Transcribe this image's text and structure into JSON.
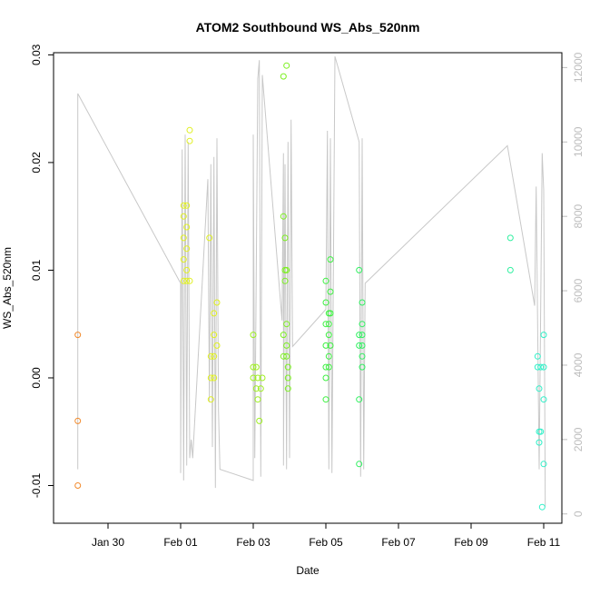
{
  "chart_data": {
    "type": "scatter",
    "title": "ATOM2 Southbound WS_Abs_520nm",
    "xlabel": "Date",
    "ylabel": "WS_Abs_520nm",
    "xlim": [
      "2022-01-28T12:00",
      "2022-02-11T12:00"
    ],
    "ylim": [
      -0.0135,
      0.0302
    ],
    "x_ticks": [
      "Jan 30",
      "Feb 01",
      "Feb 03",
      "Feb 05",
      "Feb 07",
      "Feb 09",
      "Feb 11"
    ],
    "y_ticks": [
      "-0.01",
      "0.00",
      "0.01",
      "0.02",
      "0.03"
    ],
    "right_axis": {
      "ylim": [
        -250,
        12400
      ],
      "ticks": [
        "0",
        "2000",
        "4000",
        "6000",
        "8000",
        "10000",
        "12000"
      ],
      "color": "#bdbdbd"
    },
    "colors": {
      "line": "#c8c8c8",
      "frame": "#000000"
    },
    "points": [
      {
        "x": "2022-01-29T04:00",
        "y": 0.004,
        "color": "#f28a2c"
      },
      {
        "x": "2022-01-29T04:00",
        "y": -0.004,
        "color": "#f28a2c"
      },
      {
        "x": "2022-01-29T04:00",
        "y": -0.01,
        "color": "#f28a2c"
      },
      {
        "x": "2022-02-01T02:00",
        "y": 0.016,
        "color": "#e0f020"
      },
      {
        "x": "2022-02-01T02:00",
        "y": 0.015,
        "color": "#e0f020"
      },
      {
        "x": "2022-02-01T02:00",
        "y": 0.013,
        "color": "#e0f020"
      },
      {
        "x": "2022-02-01T02:00",
        "y": 0.011,
        "color": "#e0f020"
      },
      {
        "x": "2022-02-01T02:00",
        "y": 0.009,
        "color": "#e0f020"
      },
      {
        "x": "2022-02-01T04:00",
        "y": 0.016,
        "color": "#e0f020"
      },
      {
        "x": "2022-02-01T04:00",
        "y": 0.014,
        "color": "#e0f020"
      },
      {
        "x": "2022-02-01T04:00",
        "y": 0.012,
        "color": "#e0f020"
      },
      {
        "x": "2022-02-01T04:00",
        "y": 0.01,
        "color": "#e0f020"
      },
      {
        "x": "2022-02-01T04:00",
        "y": 0.009,
        "color": "#e0f020"
      },
      {
        "x": "2022-02-01T06:00",
        "y": 0.023,
        "color": "#e0f020"
      },
      {
        "x": "2022-02-01T06:00",
        "y": 0.022,
        "color": "#e0f020"
      },
      {
        "x": "2022-02-01T06:00",
        "y": 0.009,
        "color": "#e0f020"
      },
      {
        "x": "2022-02-01T19:00",
        "y": 0.013,
        "color": "#e0f020"
      },
      {
        "x": "2022-02-01T20:00",
        "y": 0.002,
        "color": "#e0f020"
      },
      {
        "x": "2022-02-01T20:00",
        "y": 0.0,
        "color": "#e0f020"
      },
      {
        "x": "2022-02-01T20:00",
        "y": -0.002,
        "color": "#e0f020"
      },
      {
        "x": "2022-02-01T22:00",
        "y": 0.006,
        "color": "#e0f020"
      },
      {
        "x": "2022-02-01T22:00",
        "y": 0.004,
        "color": "#e0f020"
      },
      {
        "x": "2022-02-01T22:00",
        "y": 0.002,
        "color": "#e0f020"
      },
      {
        "x": "2022-02-01T22:00",
        "y": 0.0,
        "color": "#e0f020"
      },
      {
        "x": "2022-02-02T00:00",
        "y": 0.007,
        "color": "#e0f020"
      },
      {
        "x": "2022-02-02T00:00",
        "y": 0.003,
        "color": "#e0f020"
      },
      {
        "x": "2022-02-03T00:00",
        "y": 0.004,
        "color": "#9ef020"
      },
      {
        "x": "2022-02-03T00:00",
        "y": 0.001,
        "color": "#9ef020"
      },
      {
        "x": "2022-02-03T00:00",
        "y": 0.0,
        "color": "#9ef020"
      },
      {
        "x": "2022-02-03T02:00",
        "y": 0.001,
        "color": "#9ef020"
      },
      {
        "x": "2022-02-03T02:00",
        "y": -0.001,
        "color": "#9ef020"
      },
      {
        "x": "2022-02-03T03:00",
        "y": 0.0,
        "color": "#9ef020"
      },
      {
        "x": "2022-02-03T03:00",
        "y": -0.002,
        "color": "#9ef020"
      },
      {
        "x": "2022-02-03T04:00",
        "y": -0.004,
        "color": "#9ef020"
      },
      {
        "x": "2022-02-03T05:00",
        "y": -0.001,
        "color": "#9ef020"
      },
      {
        "x": "2022-02-03T06:00",
        "y": 0.0,
        "color": "#9ef020"
      },
      {
        "x": "2022-02-03T20:00",
        "y": 0.028,
        "color": "#7cf020"
      },
      {
        "x": "2022-02-03T22:00",
        "y": 0.029,
        "color": "#7cf020"
      },
      {
        "x": "2022-02-03T20:00",
        "y": 0.015,
        "color": "#7cf020"
      },
      {
        "x": "2022-02-03T21:00",
        "y": 0.013,
        "color": "#7cf020"
      },
      {
        "x": "2022-02-03T21:00",
        "y": 0.01,
        "color": "#7cf020"
      },
      {
        "x": "2022-02-03T22:00",
        "y": 0.01,
        "color": "#7cf020"
      },
      {
        "x": "2022-02-03T21:00",
        "y": 0.009,
        "color": "#7cf020"
      },
      {
        "x": "2022-02-03T20:00",
        "y": 0.004,
        "color": "#7cf020"
      },
      {
        "x": "2022-02-03T22:00",
        "y": 0.005,
        "color": "#7cf020"
      },
      {
        "x": "2022-02-03T22:00",
        "y": 0.003,
        "color": "#7cf020"
      },
      {
        "x": "2022-02-03T20:00",
        "y": 0.002,
        "color": "#7cf020"
      },
      {
        "x": "2022-02-03T22:00",
        "y": 0.002,
        "color": "#7cf020"
      },
      {
        "x": "2022-02-03T23:00",
        "y": 0.001,
        "color": "#7cf020"
      },
      {
        "x": "2022-02-03T23:00",
        "y": 0.0,
        "color": "#7cf020"
      },
      {
        "x": "2022-02-03T23:00",
        "y": -0.001,
        "color": "#7cf020"
      },
      {
        "x": "2022-02-05T00:00",
        "y": 0.009,
        "color": "#3cf040"
      },
      {
        "x": "2022-02-05T00:00",
        "y": 0.007,
        "color": "#3cf040"
      },
      {
        "x": "2022-02-05T00:00",
        "y": 0.005,
        "color": "#3cf040"
      },
      {
        "x": "2022-02-05T00:00",
        "y": 0.003,
        "color": "#3cf040"
      },
      {
        "x": "2022-02-05T00:00",
        "y": 0.001,
        "color": "#3cf040"
      },
      {
        "x": "2022-02-05T00:00",
        "y": 0.0,
        "color": "#3cf040"
      },
      {
        "x": "2022-02-05T00:00",
        "y": -0.002,
        "color": "#3cf040"
      },
      {
        "x": "2022-02-05T02:00",
        "y": 0.006,
        "color": "#3cf040"
      },
      {
        "x": "2022-02-05T02:00",
        "y": 0.005,
        "color": "#3cf040"
      },
      {
        "x": "2022-02-05T02:00",
        "y": 0.004,
        "color": "#3cf040"
      },
      {
        "x": "2022-02-05T02:00",
        "y": 0.002,
        "color": "#3cf040"
      },
      {
        "x": "2022-02-05T02:00",
        "y": 0.001,
        "color": "#3cf040"
      },
      {
        "x": "2022-02-05T03:00",
        "y": 0.011,
        "color": "#3cf040"
      },
      {
        "x": "2022-02-05T03:00",
        "y": 0.008,
        "color": "#3cf040"
      },
      {
        "x": "2022-02-05T03:00",
        "y": 0.006,
        "color": "#3cf040"
      },
      {
        "x": "2022-02-05T03:00",
        "y": 0.003,
        "color": "#3cf040"
      },
      {
        "x": "2022-02-05T22:00",
        "y": 0.01,
        "color": "#30f060"
      },
      {
        "x": "2022-02-05T22:00",
        "y": 0.004,
        "color": "#30f060"
      },
      {
        "x": "2022-02-05T22:00",
        "y": 0.003,
        "color": "#30f060"
      },
      {
        "x": "2022-02-05T22:00",
        "y": -0.002,
        "color": "#30f060"
      },
      {
        "x": "2022-02-05T22:00",
        "y": -0.008,
        "color": "#30f060"
      },
      {
        "x": "2022-02-06T00:00",
        "y": 0.007,
        "color": "#30f060"
      },
      {
        "x": "2022-02-06T00:00",
        "y": 0.005,
        "color": "#30f060"
      },
      {
        "x": "2022-02-06T00:00",
        "y": 0.004,
        "color": "#30f060"
      },
      {
        "x": "2022-02-06T00:00",
        "y": 0.003,
        "color": "#30f060"
      },
      {
        "x": "2022-02-06T00:00",
        "y": 0.002,
        "color": "#30f060"
      },
      {
        "x": "2022-02-06T00:00",
        "y": 0.001,
        "color": "#30f060"
      },
      {
        "x": "2022-02-10T02:00",
        "y": 0.013,
        "color": "#30f0a0"
      },
      {
        "x": "2022-02-10T02:00",
        "y": 0.01,
        "color": "#30f0a0"
      },
      {
        "x": "2022-02-10T20:00",
        "y": 0.002,
        "color": "#30f0c8"
      },
      {
        "x": "2022-02-10T20:00",
        "y": 0.001,
        "color": "#30f0c8"
      },
      {
        "x": "2022-02-10T22:00",
        "y": 0.001,
        "color": "#30f0c8"
      },
      {
        "x": "2022-02-10T21:00",
        "y": -0.001,
        "color": "#30f0c8"
      },
      {
        "x": "2022-02-10T21:00",
        "y": -0.005,
        "color": "#30f0c8"
      },
      {
        "x": "2022-02-10T22:00",
        "y": -0.005,
        "color": "#30f0c8"
      },
      {
        "x": "2022-02-10T21:00",
        "y": -0.006,
        "color": "#30f0c8"
      },
      {
        "x": "2022-02-11T00:00",
        "y": 0.004,
        "color": "#30f0c8"
      },
      {
        "x": "2022-02-11T00:00",
        "y": 0.001,
        "color": "#30f0c8"
      },
      {
        "x": "2022-02-11T00:00",
        "y": -0.002,
        "color": "#30f0c8"
      },
      {
        "x": "2022-02-11T00:00",
        "y": -0.008,
        "color": "#30f0c8"
      },
      {
        "x": "2022-02-10T23:00",
        "y": -0.012,
        "color": "#30f0c8"
      }
    ],
    "right_series": [
      [
        "2022-01-29T04:00",
        1200
      ],
      [
        "2022-01-29T04:00",
        11300
      ],
      [
        "2022-02-01T00:00",
        6200
      ],
      [
        "2022-02-01T00:00",
        1100
      ],
      [
        "2022-02-01T01:00",
        9800
      ],
      [
        "2022-02-01T02:00",
        900
      ],
      [
        "2022-02-01T03:00",
        10200
      ],
      [
        "2022-02-01T04:00",
        1300
      ],
      [
        "2022-02-01T05:00",
        10000
      ],
      [
        "2022-02-01T06:00",
        1500
      ],
      [
        "2022-02-01T07:00",
        2000
      ],
      [
        "2022-02-01T08:00",
        1500
      ],
      [
        "2022-02-01T18:00",
        9000
      ],
      [
        "2022-02-01T19:00",
        3000
      ],
      [
        "2022-02-01T20:00",
        9400
      ],
      [
        "2022-02-01T21:00",
        1800
      ],
      [
        "2022-02-01T22:00",
        9600
      ],
      [
        "2022-02-01T23:00",
        700
      ],
      [
        "2022-02-02T00:00",
        10100
      ],
      [
        "2022-02-02T01:00",
        2800
      ],
      [
        "2022-02-02T02:00",
        1200
      ],
      [
        "2022-02-03T00:00",
        900
      ],
      [
        "2022-02-03T00:00",
        10200
      ],
      [
        "2022-02-03T01:00",
        1500
      ],
      [
        "2022-02-03T03:00",
        11700
      ],
      [
        "2022-02-03T04:00",
        12200
      ],
      [
        "2022-02-03T05:00",
        1000
      ],
      [
        "2022-02-03T06:00",
        11800
      ],
      [
        "2022-02-03T19:00",
        5200
      ],
      [
        "2022-02-03T20:00",
        9700
      ],
      [
        "2022-02-03T20:00",
        1300
      ],
      [
        "2022-02-03T21:00",
        9400
      ],
      [
        "2022-02-03T22:00",
        1200
      ],
      [
        "2022-02-03T23:00",
        10000
      ],
      [
        "2022-02-04T00:00",
        1500
      ],
      [
        "2022-02-04T01:00",
        10600
      ],
      [
        "2022-02-04T02:00",
        4500
      ],
      [
        "2022-02-05T00:00",
        5500
      ],
      [
        "2022-02-05T01:00",
        10300
      ],
      [
        "2022-02-05T02:00",
        1200
      ],
      [
        "2022-02-05T03:00",
        10100
      ],
      [
        "2022-02-05T04:00",
        1100
      ],
      [
        "2022-02-05T06:00",
        12300
      ],
      [
        "2022-02-05T22:00",
        10000
      ],
      [
        "2022-02-05T23:00",
        1000
      ],
      [
        "2022-02-06T00:00",
        10100
      ],
      [
        "2022-02-06T01:00",
        1200
      ],
      [
        "2022-02-06T02:00",
        6200
      ],
      [
        "2022-02-10T00:00",
        9900
      ],
      [
        "2022-02-10T18:00",
        5600
      ],
      [
        "2022-02-10T19:00",
        8800
      ],
      [
        "2022-02-10T21:00",
        1200
      ],
      [
        "2022-02-10T23:00",
        9700
      ],
      [
        "2022-02-11T00:00",
        8700
      ],
      [
        "2022-02-11T01:00",
        200
      ]
    ],
    "grid": false,
    "legend": "none"
  }
}
